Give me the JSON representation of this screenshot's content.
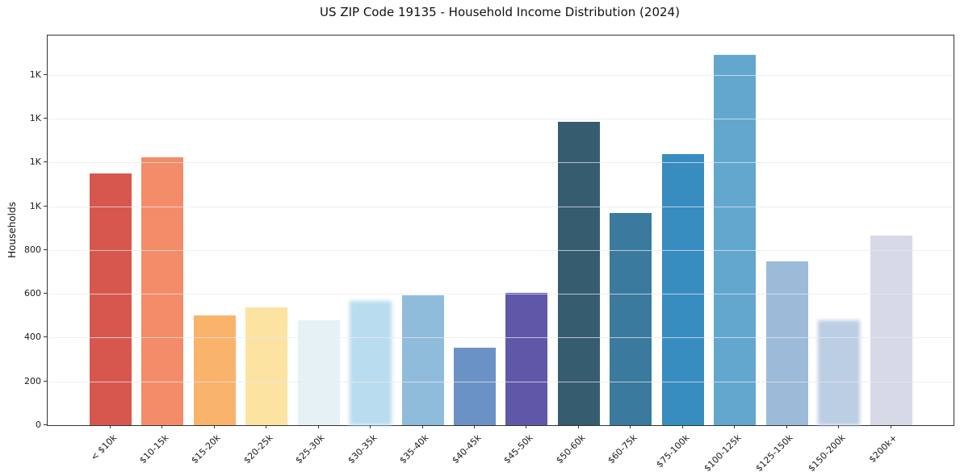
{
  "chart_data": {
    "type": "bar",
    "title": "US ZIP Code 19135 - Household Income Distribution (2024)",
    "xlabel": "",
    "ylabel": "Households",
    "categories": [
      "< $10k",
      "$10-15k",
      "$15-20k",
      "$20-25k",
      "$25-30k",
      "$30-35k",
      "$35-40k",
      "$40-45k",
      "$45-50k",
      "$50-60k",
      "$60-75k",
      "$75-100k",
      "$100-125k",
      "$125-150k",
      "$150-200k",
      "$200k+"
    ],
    "values": [
      1150,
      1225,
      500,
      538,
      478,
      568,
      595,
      355,
      605,
      1385,
      970,
      1240,
      1690,
      750,
      478,
      865
    ],
    "bar_colors": [
      "#d7574f",
      "#f48c69",
      "#f9b36a",
      "#fce3a2",
      "#e6f1f6",
      "#b9dcee",
      "#8fbcdb",
      "#6b92c6",
      "#5f58a9",
      "#365c70",
      "#3a7a9e",
      "#378dc0",
      "#63a7cf",
      "#9bbbd9",
      "#bccee3",
      "#d8d9e7"
    ],
    "soft_edge_bars": [
      5,
      14
    ],
    "ylim": [
      0,
      1780
    ],
    "yticks": [
      {
        "value": 0,
        "label": "0"
      },
      {
        "value": 200,
        "label": "200"
      },
      {
        "value": 400,
        "label": "400"
      },
      {
        "value": 600,
        "label": "600"
      },
      {
        "value": 800,
        "label": "800"
      },
      {
        "value": 1000,
        "label": "1K"
      },
      {
        "value": 1200,
        "label": "1K"
      },
      {
        "value": 1400,
        "label": "1K"
      },
      {
        "value": 1600,
        "label": "1K"
      }
    ],
    "grid": "horizontal",
    "legend": null,
    "colors": {
      "background": "#ffffff",
      "spine": "#333333",
      "grid": "#e9e9f0",
      "text": "#1a1a1a"
    }
  }
}
